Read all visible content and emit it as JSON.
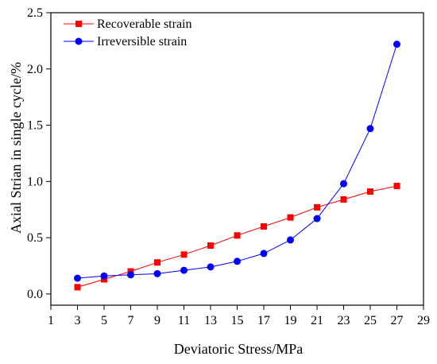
{
  "chart_data": {
    "type": "line",
    "xlabel": "Deviatoric Stress/MPa",
    "ylabel": "Axial Strian in single cycle/%",
    "xlim": [
      1,
      29
    ],
    "ylim": [
      -0.1,
      2.5
    ],
    "xticks": [
      1,
      3,
      5,
      7,
      9,
      11,
      13,
      15,
      17,
      19,
      21,
      23,
      25,
      27,
      29
    ],
    "yticks": [
      "0.0",
      "0.5",
      "1.0",
      "1.5",
      "2.0",
      "2.5"
    ],
    "grid": false,
    "legend_position": "top-left",
    "series": [
      {
        "name": "Recoverable strain",
        "color": "#ff0000",
        "marker": "square",
        "x": [
          3,
          5,
          7,
          9,
          11,
          13,
          15,
          17,
          19,
          21,
          23,
          25,
          27
        ],
        "y": [
          0.06,
          0.13,
          0.2,
          0.28,
          0.35,
          0.43,
          0.52,
          0.6,
          0.68,
          0.77,
          0.84,
          0.91,
          0.96
        ]
      },
      {
        "name": "Irreversible strain",
        "color": "#0000ff",
        "marker": "circle",
        "x": [
          3,
          5,
          7,
          9,
          11,
          13,
          15,
          17,
          19,
          21,
          23,
          25,
          27
        ],
        "y": [
          0.14,
          0.16,
          0.17,
          0.18,
          0.21,
          0.24,
          0.29,
          0.36,
          0.48,
          0.67,
          0.98,
          1.47,
          2.22
        ]
      }
    ]
  }
}
